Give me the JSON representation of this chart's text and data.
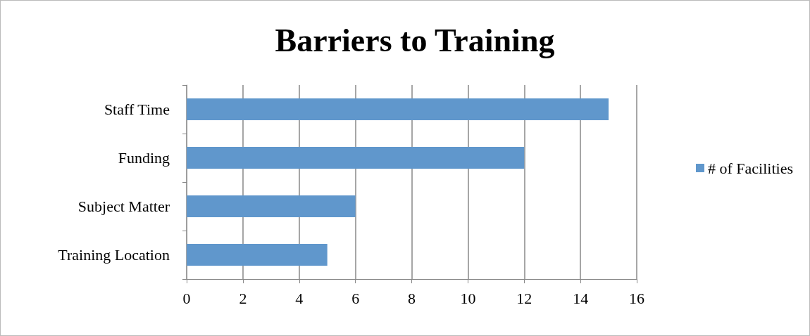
{
  "chart_data": {
    "type": "bar",
    "orientation": "horizontal",
    "title": "Barriers to Training",
    "categories": [
      "Staff Time",
      "Funding",
      "Subject Matter",
      "Training Location"
    ],
    "series": [
      {
        "name": "# of Facilities",
        "color": "#6097cc",
        "values": [
          15,
          12,
          6,
          5
        ]
      }
    ],
    "xlim": [
      0,
      16
    ],
    "xticks": [
      0,
      2,
      4,
      6,
      8,
      10,
      12,
      14,
      16
    ],
    "grid": "x",
    "legend": "right"
  }
}
